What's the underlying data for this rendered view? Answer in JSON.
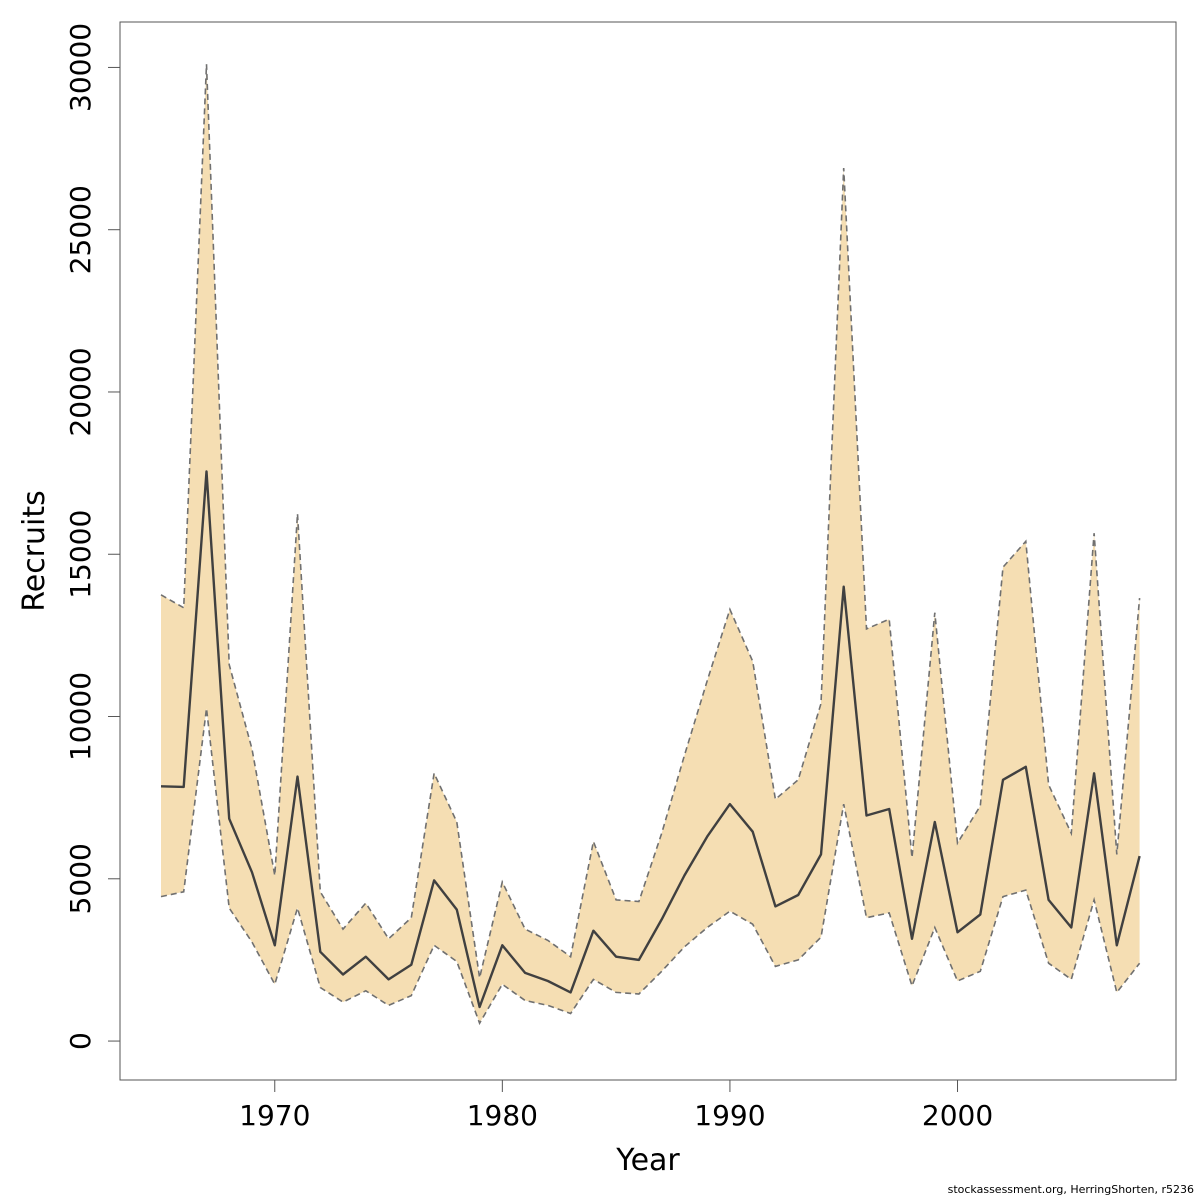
{
  "chart_data": {
    "type": "area",
    "xlabel": "Year",
    "ylabel": "Recruits",
    "xlim": [
      1963.2,
      2009.6
    ],
    "ylim": [
      -1200,
      31400
    ],
    "x_ticks": [
      1970,
      1980,
      1990,
      2000
    ],
    "y_ticks": [
      0,
      5000,
      10000,
      15000,
      20000,
      25000,
      30000
    ],
    "grid": false,
    "band_color": "#f5deb3",
    "line_color": "#404040",
    "bound_color": "#707070",
    "series": [
      {
        "x": [
          1965,
          1966,
          1967,
          1968,
          1969,
          1970,
          1971,
          1972,
          1973,
          1974,
          1975,
          1976,
          1977,
          1978,
          1979,
          1980,
          1981,
          1982,
          1983,
          1984,
          1985,
          1986,
          1987,
          1988,
          1989,
          1990,
          1991,
          1992,
          1993,
          1994,
          1995,
          1996,
          1997,
          1998,
          1999,
          2000,
          2001,
          2002,
          2003,
          2004,
          2005,
          2006,
          2007,
          2008
        ],
        "values": [
          7850,
          7830,
          17550,
          6850,
          5200,
          2950,
          8150,
          2750,
          2050,
          2600,
          1900,
          2350,
          4950,
          4050,
          1050,
          2950,
          2100,
          1850,
          1500,
          3400,
          2600,
          2500,
          3750,
          5100,
          6300,
          7300,
          6450,
          4150,
          4500,
          5750,
          14000,
          6950,
          7150,
          3150,
          6750,
          3350,
          3900,
          8050,
          8450,
          4350,
          3500,
          8250,
          2950,
          5700
        ]
      },
      {
        "x": [
          1965,
          1966,
          1967,
          1968,
          1969,
          1970,
          1971,
          1972,
          1973,
          1974,
          1975,
          1976,
          1977,
          1978,
          1979,
          1980,
          1981,
          1982,
          1983,
          1984,
          1985,
          1986,
          1987,
          1988,
          1989,
          1990,
          1991,
          1992,
          1993,
          1994,
          1995,
          1996,
          1997,
          1998,
          1999,
          2000,
          2001,
          2002,
          2003,
          2004,
          2005,
          2006,
          2007,
          2008
        ],
        "values": [
          13750,
          13350,
          30100,
          11600,
          9000,
          5100,
          16250,
          4600,
          3450,
          4250,
          3150,
          3800,
          8250,
          6750,
          1950,
          4900,
          3450,
          3100,
          2600,
          6150,
          4350,
          4300,
          6400,
          8800,
          11100,
          13300,
          11700,
          7450,
          8050,
          10400,
          26900,
          12700,
          13000,
          5650,
          13200,
          6100,
          7250,
          14600,
          15400,
          7900,
          6400,
          15650,
          5750,
          13650
        ]
      },
      {
        "x": [
          1965,
          1966,
          1967,
          1968,
          1969,
          1970,
          1971,
          1972,
          1973,
          1974,
          1975,
          1976,
          1977,
          1978,
          1979,
          1980,
          1981,
          1982,
          1983,
          1984,
          1985,
          1986,
          1987,
          1988,
          1989,
          1990,
          1991,
          1992,
          1993,
          1994,
          1995,
          1996,
          1997,
          1998,
          1999,
          2000,
          2001,
          2002,
          2003,
          2004,
          2005,
          2006,
          2007,
          2008
        ],
        "values": [
          4450,
          4600,
          10250,
          4100,
          3050,
          1750,
          4100,
          1650,
          1200,
          1550,
          1100,
          1400,
          2950,
          2450,
          550,
          1750,
          1250,
          1100,
          850,
          1900,
          1500,
          1450,
          2150,
          2900,
          3500,
          4000,
          3600,
          2300,
          2500,
          3200,
          7300,
          3800,
          3950,
          1700,
          3500,
          1850,
          2150,
          4450,
          4650,
          2400,
          1900,
          4350,
          1500,
          2400
        ]
      }
    ]
  },
  "credit": "stockassessment.org, HerringShorten, r5236"
}
